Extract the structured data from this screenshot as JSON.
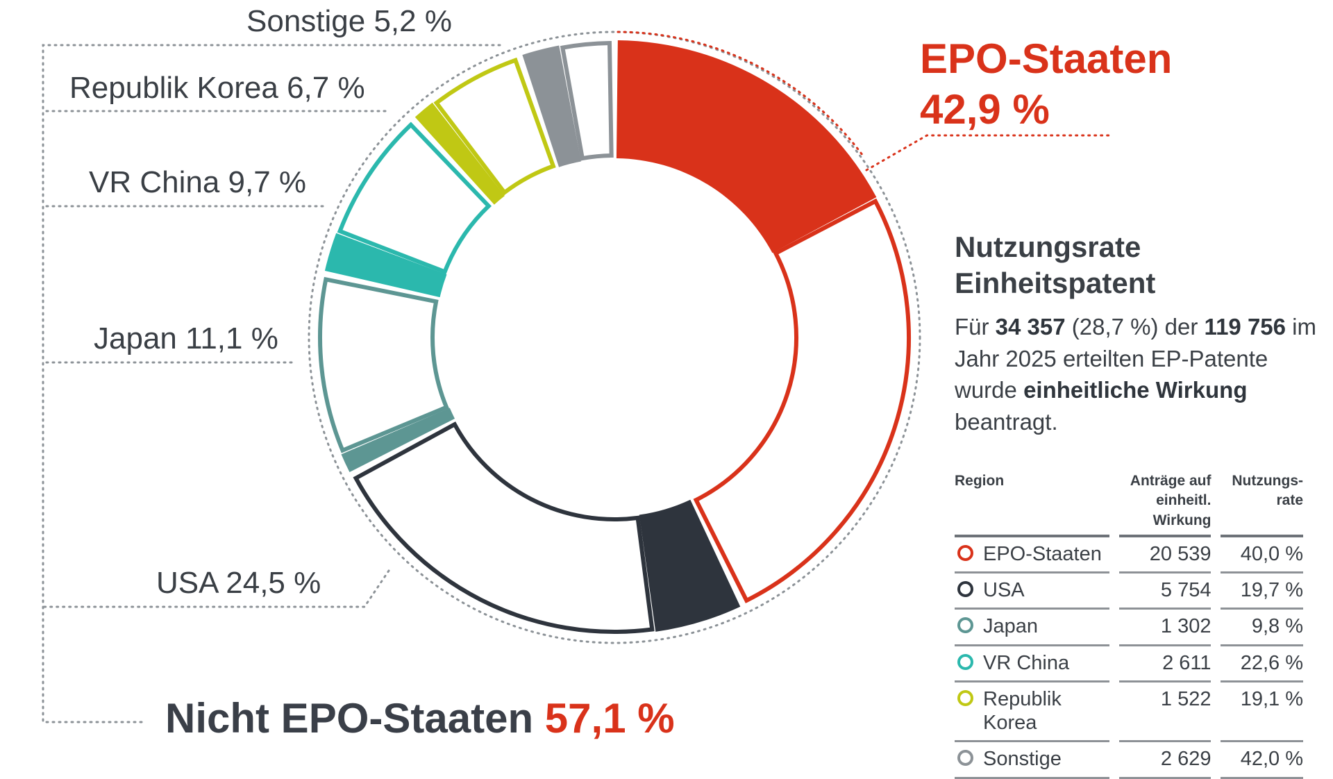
{
  "chart_data": {
    "type": "pie",
    "style": "donut",
    "slices": [
      {
        "label": "EPO-Staaten",
        "value": 42.9,
        "color": "#d9321a",
        "used_share": 40.0
      },
      {
        "label": "USA",
        "value": 24.5,
        "color": "#2e343d",
        "used_share": 19.7
      },
      {
        "label": "Japan",
        "value": 11.1,
        "color": "#5d9693",
        "used_share": 9.8
      },
      {
        "label": "VR China",
        "value": 9.7,
        "color": "#2bb8ad",
        "used_share": 22.6
      },
      {
        "label": "Republik Korea",
        "value": 6.7,
        "color": "#c0c814",
        "used_share": 19.1
      },
      {
        "label": "Sonstige",
        "value": 5.2,
        "color": "#8c9297",
        "used_share": 42.0
      }
    ]
  },
  "labels": {
    "sonstige": "Sonstige 5,2 %",
    "korea": "Republik Korea 6,7 %",
    "china": "VR China 9,7 %",
    "japan": "Japan 11,1 %",
    "usa": "USA 24,5 %",
    "epo_name": "EPO-Staaten",
    "epo_pct": "42,9 %",
    "non_epo_name": "Nicht EPO-Staaten",
    "non_epo_pct": "57,1 %"
  },
  "info": {
    "heading_line1": "Nutzungsrate",
    "heading_line2": "Einheitspatent",
    "t1": "Für ",
    "b1": "34 357",
    "t2": " (28,7  %) der ",
    "b2": "119 756",
    "t3": " im Jahr 2025 erteilten EP-Patente wurde ",
    "b3": "einheitliche Wirkung",
    "t4": " beantragt."
  },
  "table": {
    "headers": {
      "region": "Region",
      "antraege": "Anträge auf einheitl. Wirkung",
      "rate": "Nutzungs-rate"
    },
    "rows": [
      {
        "region": "EPO-Staaten",
        "antraege": "20 539",
        "rate": "40,0 %",
        "color": "#d9321a"
      },
      {
        "region": "USA",
        "antraege": "5 754",
        "rate": "19,7 %",
        "color": "#2e343d"
      },
      {
        "region": "Japan",
        "antraege": "1 302",
        "rate": "9,8 %",
        "color": "#5d9693"
      },
      {
        "region": "VR China",
        "antraege": "2 611",
        "rate": "22,6 %",
        "color": "#2bb8ad"
      },
      {
        "region": "Republik Korea",
        "antraege": "1 522",
        "rate": "19,1 %",
        "color": "#c0c814"
      },
      {
        "region": "Sonstige",
        "antraege": "2 629",
        "rate": "42,0 %",
        "color": "#8c9297"
      }
    ]
  }
}
